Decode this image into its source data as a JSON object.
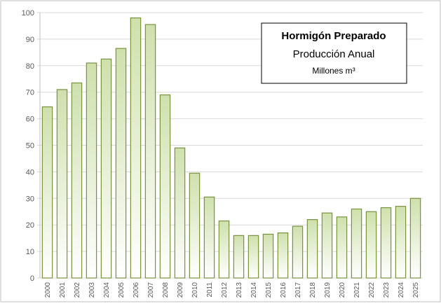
{
  "chart_data": {
    "type": "bar",
    "annotations": [
      "Hormigón Preparado",
      "Producción Anual",
      "Millones m³"
    ],
    "categories": [
      "2000",
      "2001",
      "2002",
      "2003",
      "2004",
      "2005",
      "2006",
      "2007",
      "2008",
      "2009",
      "2010",
      "2011",
      "2012",
      "2013",
      "2014",
      "2015",
      "2016",
      "2017",
      "2018",
      "2019",
      "2020",
      "2021",
      "2022",
      "2023",
      "2024",
      "2025"
    ],
    "values": [
      64.5,
      71,
      73.5,
      81,
      82.5,
      86.5,
      98,
      95.5,
      69,
      49,
      39.5,
      30.5,
      21.5,
      16,
      16,
      16.5,
      17,
      19.5,
      22,
      24.5,
      23,
      26,
      25,
      26.5,
      27,
      30
    ],
    "color": "#77933c",
    "ylim": [
      0,
      100
    ],
    "yticks": [
      0,
      10,
      20,
      30,
      40,
      50,
      60,
      70,
      80,
      90,
      100
    ],
    "grid": true
  }
}
